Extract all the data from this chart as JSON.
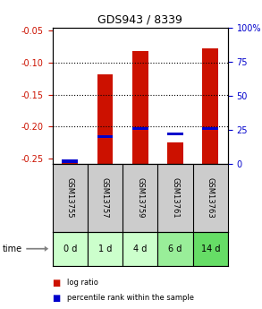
{
  "title": "GDS943 / 8339",
  "samples": [
    "GSM13755",
    "GSM13757",
    "GSM13759",
    "GSM13761",
    "GSM13763"
  ],
  "time_labels": [
    "0 d",
    "1 d",
    "4 d",
    "6 d",
    "14 d"
  ],
  "log_ratio": [
    -0.253,
    -0.118,
    -0.082,
    -0.225,
    -0.078
  ],
  "percentile_rank": [
    2,
    20,
    26,
    22,
    26
  ],
  "ylim_left": [
    -0.258,
    -0.046
  ],
  "ylim_right": [
    0,
    100
  ],
  "yticks_left": [
    -0.25,
    -0.2,
    -0.15,
    -0.1,
    -0.05
  ],
  "yticks_right": [
    0,
    25,
    50,
    75,
    100
  ],
  "bar_color": "#cc1100",
  "percentile_color": "#0000cc",
  "bar_bottom": -0.258,
  "bar_width": 0.45,
  "background_color": "#ffffff",
  "plot_bg": "#ffffff",
  "header_bg": "#cccccc",
  "time_bg_colors": [
    "#ccffcc",
    "#ccffcc",
    "#ccffcc",
    "#99ee99",
    "#66dd66"
  ],
  "left_axis_color": "#cc1100",
  "right_axis_color": "#0000cc",
  "legend_red": "log ratio",
  "legend_blue": "percentile rank within the sample",
  "figsize": [
    2.93,
    3.45
  ],
  "dpi": 100
}
